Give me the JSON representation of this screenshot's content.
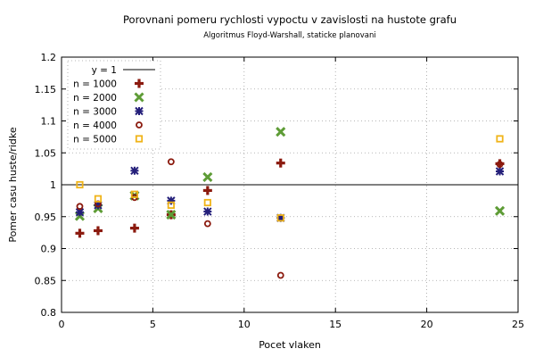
{
  "chart_data": {
    "type": "scatter",
    "title": "Porovnani pomeru rychlosti vypoctu v zavislosti na hustote grafu",
    "subtitle": "Algoritmus Floyd-Warshall, staticke planovani",
    "xlabel": "Pocet vlaken",
    "ylabel": "Pomer casu huste/ridke",
    "xlim": [
      0,
      25
    ],
    "ylim": [
      0.8,
      1.2
    ],
    "xticks": [
      0,
      5,
      10,
      15,
      20,
      25
    ],
    "yticks": [
      0.8,
      0.85,
      0.9,
      0.95,
      1,
      1.05,
      1.1,
      1.15,
      1.2
    ],
    "grid": true,
    "legend_position": "top-left",
    "reference_line": {
      "label": "y = 1",
      "y": 1,
      "color": "#000000"
    },
    "x": [
      1,
      2,
      4,
      6,
      8,
      12,
      24
    ],
    "series": [
      {
        "name": "n = 1000",
        "marker": "plus",
        "color": "#8b1a0e",
        "values": [
          0.924,
          0.928,
          0.932,
          0.953,
          0.991,
          1.034,
          1.033
        ]
      },
      {
        "name": "n = 2000",
        "marker": "cross",
        "color": "#5e9c36",
        "values": [
          0.951,
          0.963,
          0.983,
          0.953,
          1.012,
          1.083,
          0.959
        ]
      },
      {
        "name": "n = 3000",
        "marker": "star",
        "color": "#241f7a",
        "values": [
          0.957,
          0.968,
          1.022,
          0.975,
          0.958,
          0.948,
          1.021
        ]
      },
      {
        "name": "n = 4000",
        "marker": "circle",
        "color": "#8b1a0e",
        "values": [
          0.966,
          0.97,
          0.98,
          1.036,
          0.939,
          0.858,
          1.032
        ]
      },
      {
        "name": "n = 5000",
        "marker": "square",
        "color": "#f0b41a",
        "values": [
          1.0,
          0.978,
          0.985,
          0.968,
          0.972,
          0.948,
          1.072
        ]
      }
    ]
  }
}
